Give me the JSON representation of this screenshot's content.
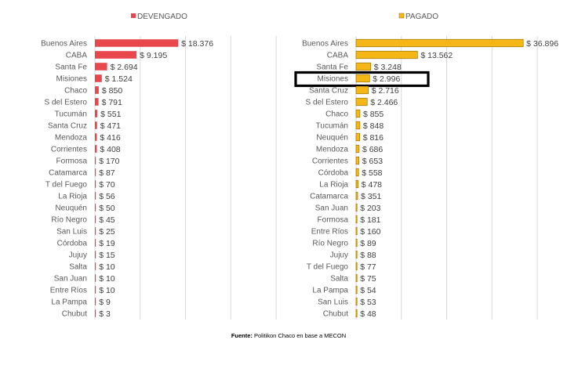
{
  "source_note": {
    "bold": "Fuente:",
    "text": " Politikon Chaco en base a MECON"
  },
  "chart_data": [
    {
      "type": "bar",
      "orientation": "horizontal",
      "series": [
        {
          "name": "DEVENGADO",
          "color": "#e8474c",
          "categories": [
            "Buenos Aires",
            "CABA",
            "Santa Fe",
            "Misiones",
            "Chaco",
            "S del Estero",
            "Tucumán",
            "Santa Cruz",
            "Mendoza",
            "Corrientes",
            "Formosa",
            "Catamarca",
            "T del Fuego",
            "La Rioja",
            "Neuquén",
            "Río Negro",
            "San Luis",
            "Córdoba",
            "Jujuy",
            "Salta",
            "San Juan",
            "Entre Ríos",
            "La Pampa",
            "Chubut"
          ],
          "values": [
            18376,
            9195,
            2694,
            1524,
            850,
            791,
            551,
            471,
            416,
            408,
            170,
            87,
            70,
            56,
            50,
            45,
            25,
            19,
            15,
            10,
            10,
            10,
            9,
            3
          ],
          "labels": [
            "$ 18.376",
            "$ 9.195",
            "$ 2.694",
            "$ 1.524",
            "$ 850",
            "$ 791",
            "$ 551",
            "$ 471",
            "$ 416",
            "$ 408",
            "$ 170",
            "$ 87",
            "$ 70",
            "$ 56",
            "$ 50",
            "$ 45",
            "$ 25",
            "$ 19",
            "$ 15",
            "$ 10",
            "$ 10",
            "$ 10",
            "$ 9",
            "$ 3"
          ]
        }
      ],
      "xlim": [
        0,
        45000
      ],
      "grid": true,
      "legend": "top"
    },
    {
      "type": "bar",
      "orientation": "horizontal",
      "series": [
        {
          "name": "PAGADO",
          "color": "#f5b716",
          "categories": [
            "Buenos Aires",
            "CABA",
            "Santa Fe",
            "Misiones",
            "Santa Cruz",
            "S del Estero",
            "Chaco",
            "Tucumán",
            "Neuquén",
            "Mendoza",
            "Corrientes",
            "Córdoba",
            "La Rioja",
            "Catamarca",
            "San Juan",
            "Formosa",
            "Entre Ríos",
            "Río Negro",
            "Jujuy",
            "T del Fuego",
            "Salta",
            "La Pampa",
            "San Luis",
            "Chubut"
          ],
          "values": [
            36896,
            13562,
            3248,
            2996,
            2716,
            2466,
            855,
            848,
            816,
            686,
            653,
            558,
            478,
            351,
            203,
            181,
            160,
            89,
            88,
            77,
            75,
            54,
            53,
            48
          ],
          "labels": [
            "$ 36.896",
            "$ 13.562",
            "$ 3.248",
            "$ 2.996",
            "$ 2.716",
            "$ 2.466",
            "$ 855",
            "$ 848",
            "$ 816",
            "$ 686",
            "$ 653",
            "$ 558",
            "$ 478",
            "$ 351",
            "$ 203",
            "$ 181",
            "$ 160",
            "$ 89",
            "$ 88",
            "$ 77",
            "$ 75",
            "$ 54",
            "$ 53",
            "$ 48"
          ]
        }
      ],
      "xlim": [
        0,
        45000
      ],
      "grid": true,
      "legend": "top",
      "highlight_category": "Misiones"
    }
  ]
}
